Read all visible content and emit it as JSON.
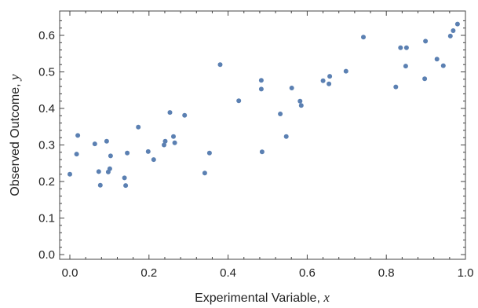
{
  "chart_data": {
    "type": "scatter",
    "xlabel": "Experimental Variable, ",
    "xlabel_var": "x",
    "ylabel": "Observed Outcome, ",
    "ylabel_var": "y",
    "xlim": [
      0.0,
      1.0
    ],
    "ylim": [
      0.0,
      0.65
    ],
    "x_ticks": [
      "0.0",
      "0.2",
      "0.4",
      "0.6",
      "0.8",
      "1.0"
    ],
    "x_tick_values": [
      0.0,
      0.2,
      0.4,
      0.6,
      0.8,
      1.0
    ],
    "y_ticks": [
      "0.0",
      "0.1",
      "0.2",
      "0.3",
      "0.4",
      "0.5",
      "0.6"
    ],
    "y_tick_values": [
      0.0,
      0.1,
      0.2,
      0.3,
      0.4,
      0.5,
      0.6
    ],
    "grid": false,
    "point_color": "#5b80b2",
    "points": [
      [
        0.0,
        0.22
      ],
      [
        0.017,
        0.275
      ],
      [
        0.02,
        0.326
      ],
      [
        0.063,
        0.303
      ],
      [
        0.073,
        0.227
      ],
      [
        0.077,
        0.19
      ],
      [
        0.093,
        0.31
      ],
      [
        0.097,
        0.226
      ],
      [
        0.101,
        0.235
      ],
      [
        0.103,
        0.27
      ],
      [
        0.138,
        0.21
      ],
      [
        0.141,
        0.189
      ],
      [
        0.145,
        0.278
      ],
      [
        0.173,
        0.349
      ],
      [
        0.198,
        0.282
      ],
      [
        0.212,
        0.26
      ],
      [
        0.238,
        0.3
      ],
      [
        0.241,
        0.31
      ],
      [
        0.253,
        0.389
      ],
      [
        0.262,
        0.323
      ],
      [
        0.265,
        0.306
      ],
      [
        0.29,
        0.381
      ],
      [
        0.341,
        0.223
      ],
      [
        0.353,
        0.278
      ],
      [
        0.38,
        0.52
      ],
      [
        0.427,
        0.421
      ],
      [
        0.484,
        0.477
      ],
      [
        0.484,
        0.453
      ],
      [
        0.486,
        0.281
      ],
      [
        0.532,
        0.385
      ],
      [
        0.547,
        0.323
      ],
      [
        0.561,
        0.456
      ],
      [
        0.582,
        0.42
      ],
      [
        0.585,
        0.408
      ],
      [
        0.64,
        0.476
      ],
      [
        0.655,
        0.467
      ],
      [
        0.657,
        0.488
      ],
      [
        0.698,
        0.502
      ],
      [
        0.742,
        0.595
      ],
      [
        0.824,
        0.459
      ],
      [
        0.836,
        0.566
      ],
      [
        0.849,
        0.516
      ],
      [
        0.851,
        0.566
      ],
      [
        0.897,
        0.481
      ],
      [
        0.899,
        0.584
      ],
      [
        0.928,
        0.535
      ],
      [
        0.944,
        0.517
      ],
      [
        0.962,
        0.598
      ],
      [
        0.969,
        0.613
      ],
      [
        0.98,
        0.631
      ]
    ]
  }
}
